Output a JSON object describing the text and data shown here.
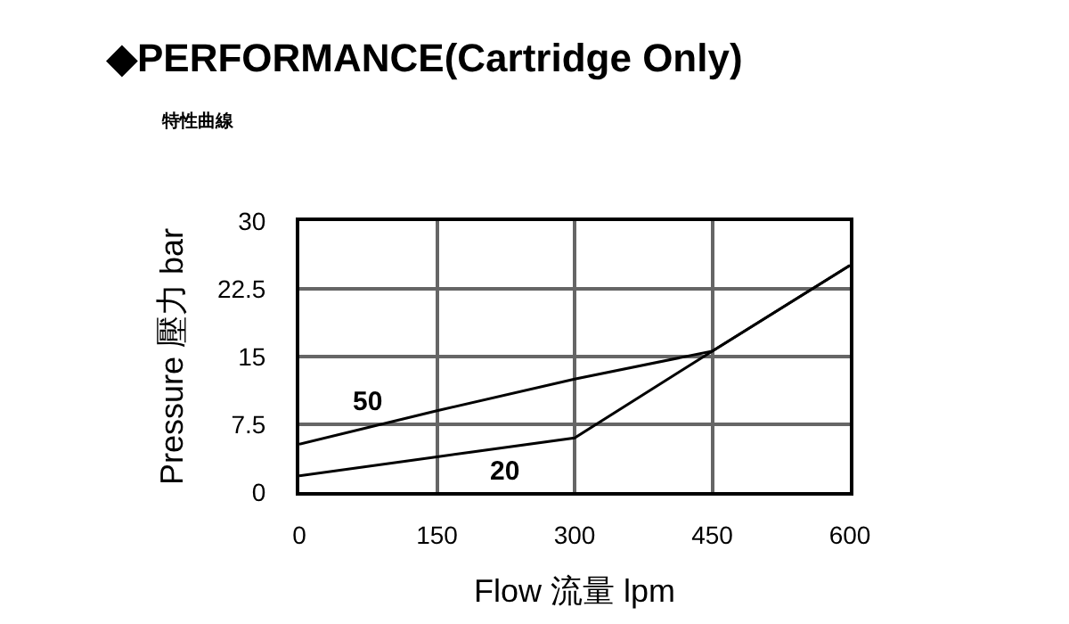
{
  "chart_data": {
    "type": "line",
    "title": "◆PERFORMANCE(Cartridge Only)",
    "subtitle": "特性曲線",
    "xlabel": "Flow 流量 lpm",
    "ylabel": "Pressure 壓力 bar",
    "x": [
      0,
      150,
      300,
      450,
      600
    ],
    "series": [
      {
        "name": "50",
        "color": "#000000",
        "values": [
          5.3,
          9.0,
          12.5,
          15.6,
          25.1
        ]
      },
      {
        "name": "20",
        "color": "#000000",
        "values": [
          1.8,
          3.9,
          6.0,
          15.6,
          25.1
        ]
      }
    ],
    "xlim": [
      0,
      600
    ],
    "xticks": [
      0,
      150,
      300,
      450,
      600
    ],
    "ylim": [
      0,
      30
    ],
    "yticks": [
      0,
      7.5,
      15,
      22.5,
      30
    ],
    "grid": true,
    "legend": false,
    "marker": "none",
    "line_style": "solid"
  }
}
